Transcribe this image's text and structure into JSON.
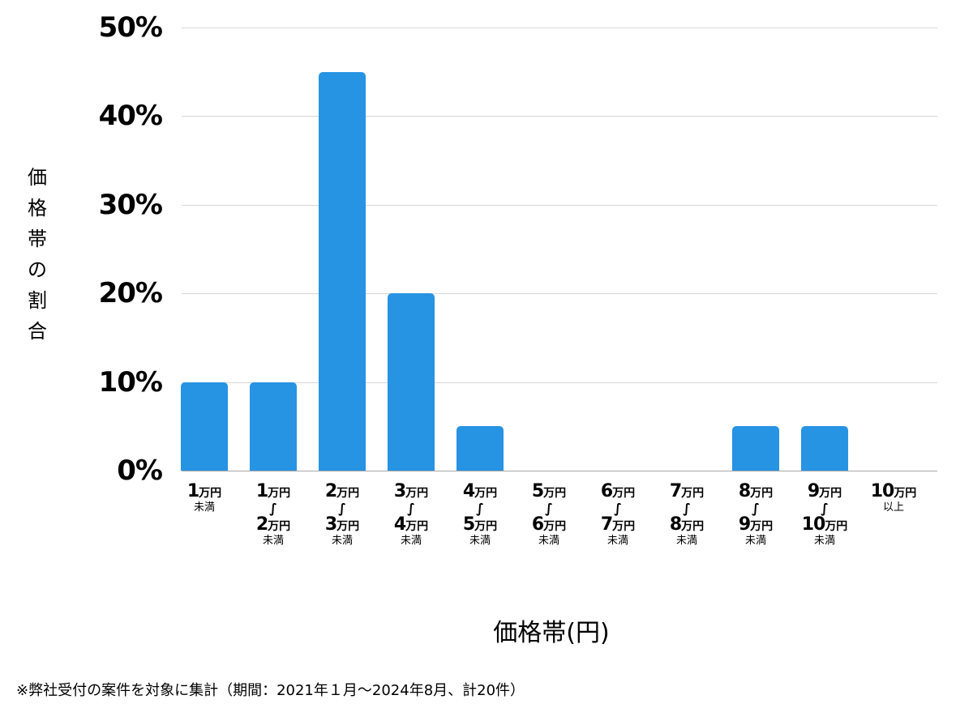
{
  "chart_data": {
    "type": "bar",
    "title": "",
    "xlabel": "価格帯(円)",
    "ylabel": "価格帯の割合",
    "ylim": [
      0,
      50
    ],
    "yticks": [
      "0%",
      "10%",
      "20%",
      "30%",
      "40%",
      "50%"
    ],
    "grid": true,
    "legend": null,
    "categories": [
      "1万円未満",
      "1万円〜2万円未満",
      "2万円〜3万円未満",
      "3万円〜4万円未満",
      "4万円〜5万円未満",
      "5万円〜6万円未満",
      "6万円〜7万円未満",
      "7万円〜8万円未満",
      "8万円〜9万円未満",
      "9万円〜10万円未満",
      "10万円以上"
    ],
    "values": [
      10,
      10,
      45,
      20,
      5,
      0,
      0,
      0,
      5,
      5,
      0
    ],
    "bar_color": "#2793e3",
    "footnote": "※弊社受付の案件を対象に集計（期間：2021年１月〜2024年8月、計20件）"
  },
  "axis": {
    "yticks": [
      "50%",
      "40%",
      "30%",
      "20%",
      "10%",
      "0%"
    ],
    "ylabel_chars": [
      "価",
      "格",
      "帯",
      "の",
      "割",
      "合"
    ],
    "xtitle": "価格帯(円)"
  },
  "xlabels": [
    {
      "from": "1",
      "to": null,
      "suffix": "未満"
    },
    {
      "from": "1",
      "to": "2",
      "suffix": "未満"
    },
    {
      "from": "2",
      "to": "3",
      "suffix": "未満"
    },
    {
      "from": "3",
      "to": "4",
      "suffix": "未満"
    },
    {
      "from": "4",
      "to": "5",
      "suffix": "未満"
    },
    {
      "from": "5",
      "to": "6",
      "suffix": "未満"
    },
    {
      "from": "6",
      "to": "7",
      "suffix": "未満"
    },
    {
      "from": "7",
      "to": "8",
      "suffix": "未満"
    },
    {
      "from": "8",
      "to": "9",
      "suffix": "未満"
    },
    {
      "from": "9",
      "to": "10",
      "suffix": "未満"
    },
    {
      "from": "10",
      "to": null,
      "suffix": "以上"
    }
  ],
  "unit": "万円",
  "tilde": "∫",
  "footnote": "※弊社受付の案件を対象に集計（期間：2021年１月〜2024年8月、計20件）"
}
